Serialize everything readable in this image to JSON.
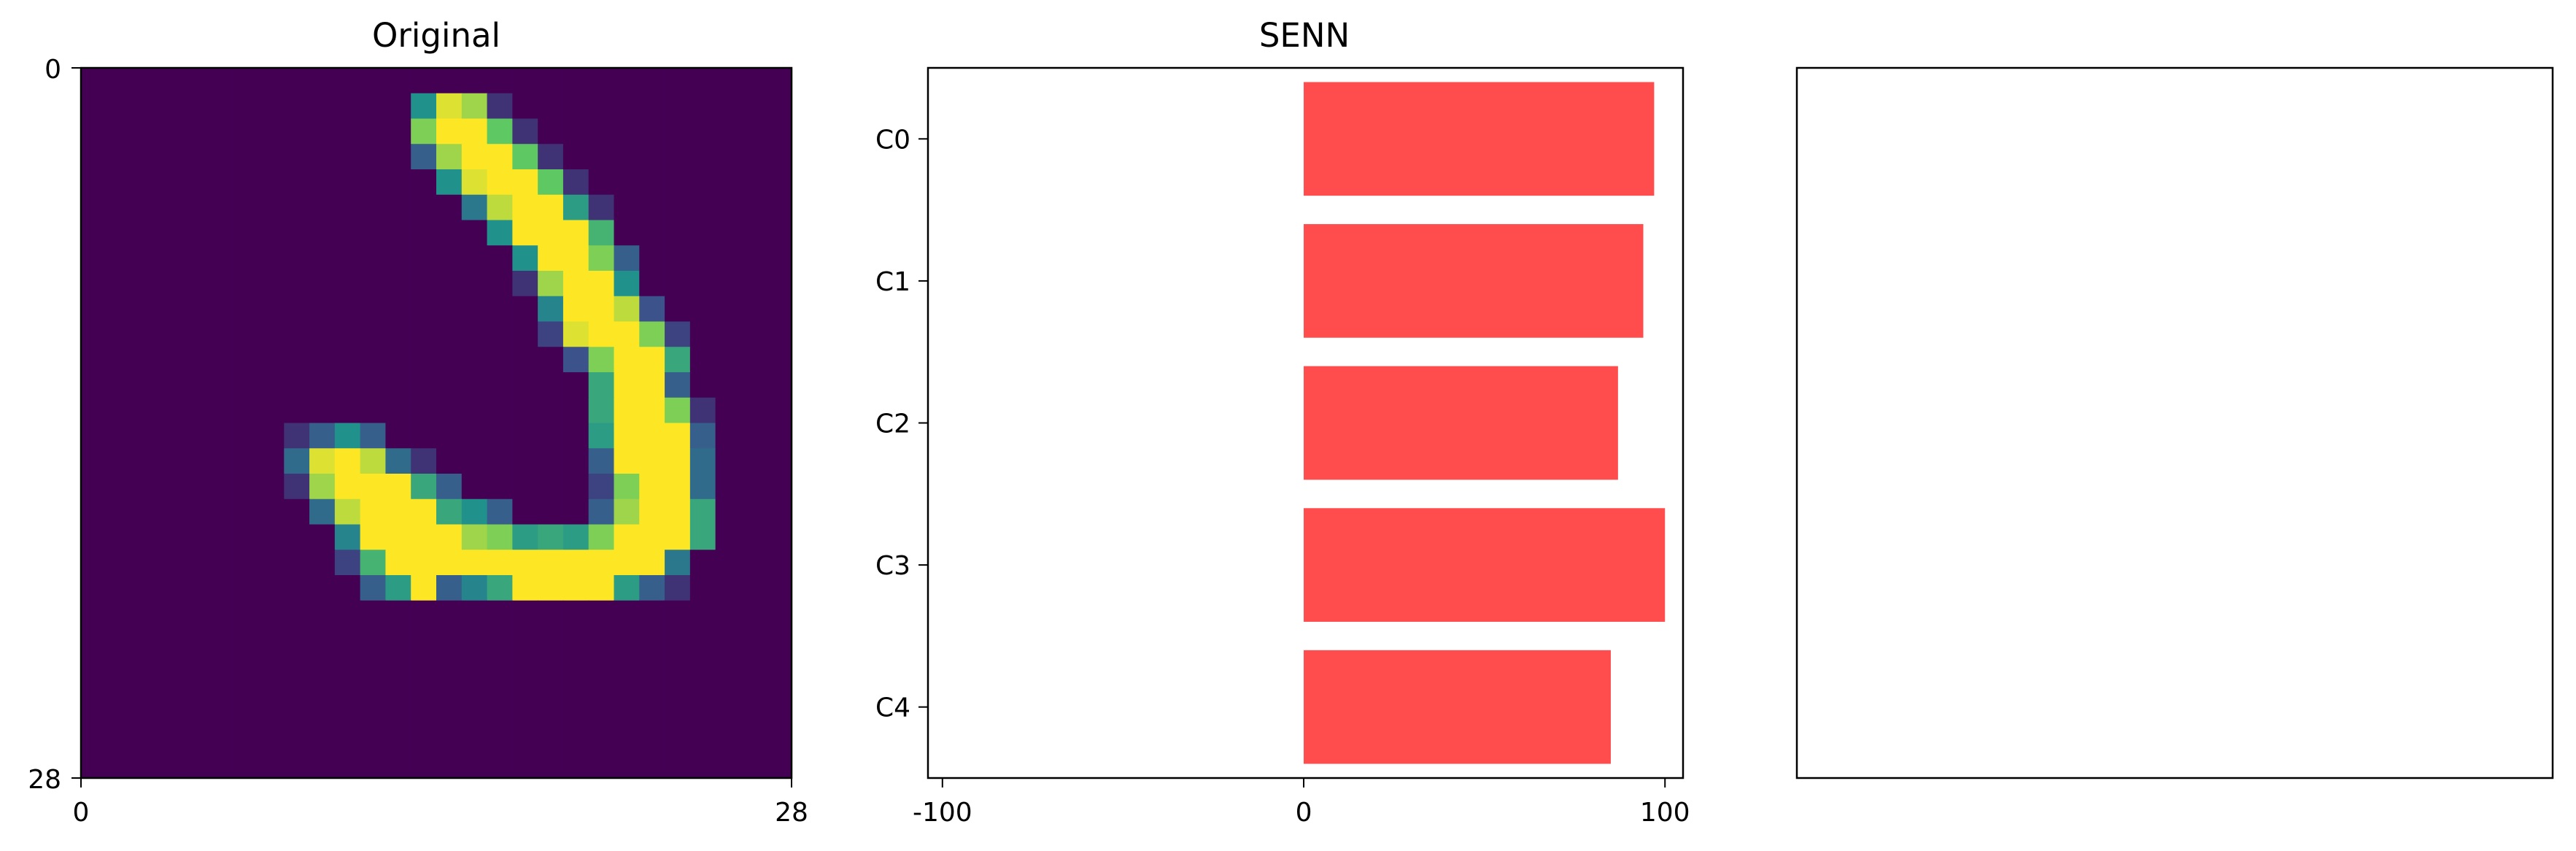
{
  "chart_data": [
    {
      "type": "heatmap",
      "title": "Original",
      "xlim": [
        0,
        28
      ],
      "ylim": [
        28,
        0
      ],
      "x_ticks": [
        "0",
        "28"
      ],
      "y_ticks": [
        "0",
        "28"
      ],
      "colormap": "viridis",
      "grid": [
        [
          0,
          0,
          0,
          0,
          0,
          0,
          0,
          0,
          0,
          0,
          0,
          0,
          0,
          0,
          0,
          0,
          0,
          0,
          0,
          0,
          0,
          0,
          0,
          0,
          0,
          0,
          0,
          0
        ],
        [
          0,
          0,
          0,
          0,
          0,
          0,
          0,
          0,
          0,
          0,
          0,
          0,
          0,
          0.5,
          0.95,
          0.85,
          0.15,
          0,
          0,
          0,
          0,
          0,
          0,
          0,
          0,
          0,
          0,
          0
        ],
        [
          0,
          0,
          0,
          0,
          0,
          0,
          0,
          0,
          0,
          0,
          0,
          0,
          0,
          0.8,
          1,
          1,
          0.75,
          0.15,
          0,
          0,
          0,
          0,
          0,
          0,
          0,
          0,
          0,
          0
        ],
        [
          0,
          0,
          0,
          0,
          0,
          0,
          0,
          0,
          0,
          0,
          0,
          0,
          0,
          0.3,
          0.85,
          1,
          1,
          0.75,
          0.15,
          0,
          0,
          0,
          0,
          0,
          0,
          0,
          0,
          0
        ],
        [
          0,
          0,
          0,
          0,
          0,
          0,
          0,
          0,
          0,
          0,
          0,
          0,
          0,
          0,
          0.5,
          0.95,
          1,
          1,
          0.75,
          0.15,
          0,
          0,
          0,
          0,
          0,
          0,
          0,
          0
        ],
        [
          0,
          0,
          0,
          0,
          0,
          0,
          0,
          0,
          0,
          0,
          0,
          0,
          0,
          0,
          0,
          0.4,
          0.9,
          1,
          1,
          0.55,
          0.15,
          0,
          0,
          0,
          0,
          0,
          0,
          0
        ],
        [
          0,
          0,
          0,
          0,
          0,
          0,
          0,
          0,
          0,
          0,
          0,
          0,
          0,
          0,
          0,
          0,
          0.5,
          1,
          1,
          1,
          0.65,
          0,
          0,
          0,
          0,
          0,
          0,
          0
        ],
        [
          0,
          0,
          0,
          0,
          0,
          0,
          0,
          0,
          0,
          0,
          0,
          0,
          0,
          0,
          0,
          0,
          0,
          0.5,
          1,
          1,
          0.8,
          0.3,
          0,
          0,
          0,
          0,
          0,
          0
        ],
        [
          0,
          0,
          0,
          0,
          0,
          0,
          0,
          0,
          0,
          0,
          0,
          0,
          0,
          0,
          0,
          0,
          0,
          0.15,
          0.85,
          1,
          1,
          0.5,
          0,
          0,
          0,
          0,
          0,
          0
        ],
        [
          0,
          0,
          0,
          0,
          0,
          0,
          0,
          0,
          0,
          0,
          0,
          0,
          0,
          0,
          0,
          0,
          0,
          0,
          0.45,
          1,
          1,
          0.9,
          0.25,
          0,
          0,
          0,
          0,
          0
        ],
        [
          0,
          0,
          0,
          0,
          0,
          0,
          0,
          0,
          0,
          0,
          0,
          0,
          0,
          0,
          0,
          0,
          0,
          0,
          0.2,
          0.95,
          1,
          1,
          0.8,
          0.2,
          0,
          0,
          0,
          0
        ],
        [
          0,
          0,
          0,
          0,
          0,
          0,
          0,
          0,
          0,
          0,
          0,
          0,
          0,
          0,
          0,
          0,
          0,
          0,
          0,
          0.25,
          0.8,
          1,
          1,
          0.6,
          0,
          0,
          0,
          0
        ],
        [
          0,
          0,
          0,
          0,
          0,
          0,
          0,
          0,
          0,
          0,
          0,
          0,
          0,
          0,
          0,
          0,
          0,
          0,
          0,
          0,
          0.6,
          1,
          1,
          0.3,
          0,
          0,
          0,
          0
        ],
        [
          0,
          0,
          0,
          0,
          0,
          0,
          0,
          0,
          0,
          0,
          0,
          0,
          0,
          0,
          0,
          0,
          0,
          0,
          0,
          0,
          0.6,
          1,
          1,
          0.8,
          0.15,
          0,
          0,
          0
        ],
        [
          0,
          0,
          0,
          0,
          0,
          0,
          0,
          0,
          0.15,
          0.3,
          0.5,
          0.3,
          0,
          0,
          0,
          0,
          0,
          0,
          0,
          0,
          0.55,
          1,
          1,
          1,
          0.3,
          0,
          0,
          0
        ],
        [
          0,
          0,
          0,
          0,
          0,
          0,
          0,
          0,
          0.35,
          0.95,
          1,
          0.9,
          0.35,
          0.15,
          0,
          0,
          0,
          0,
          0,
          0,
          0.3,
          1,
          1,
          1,
          0.35,
          0,
          0,
          0
        ],
        [
          0,
          0,
          0,
          0,
          0,
          0,
          0,
          0,
          0.15,
          0.85,
          1,
          1,
          1,
          0.6,
          0.3,
          0,
          0,
          0,
          0,
          0,
          0.2,
          0.8,
          1,
          1,
          0.35,
          0,
          0,
          0
        ],
        [
          0,
          0,
          0,
          0,
          0,
          0,
          0,
          0,
          0,
          0.35,
          0.9,
          1,
          1,
          1,
          0.6,
          0.5,
          0.3,
          0,
          0,
          0,
          0.3,
          0.85,
          1,
          1,
          0.6,
          0,
          0,
          0
        ],
        [
          0,
          0,
          0,
          0,
          0,
          0,
          0,
          0,
          0,
          0,
          0.45,
          1,
          1,
          1,
          1,
          0.85,
          0.8,
          0.55,
          0.6,
          0.55,
          0.8,
          1,
          1,
          1,
          0.6,
          0,
          0,
          0
        ],
        [
          0,
          0,
          0,
          0,
          0,
          0,
          0,
          0,
          0,
          0,
          0.2,
          0.65,
          1,
          1,
          1,
          1,
          1,
          1,
          1,
          1,
          1,
          1,
          1,
          0.4,
          0,
          0,
          0,
          0
        ],
        [
          0,
          0,
          0,
          0,
          0,
          0,
          0,
          0,
          0,
          0,
          0,
          0.3,
          0.55,
          1,
          0.3,
          0.45,
          0.6,
          1,
          1,
          1,
          1,
          0.55,
          0.3,
          0.15,
          0,
          0,
          0,
          0
        ],
        [
          0,
          0,
          0,
          0,
          0,
          0,
          0,
          0,
          0,
          0,
          0,
          0,
          0,
          0,
          0,
          0,
          0,
          0,
          0,
          0,
          0,
          0,
          0,
          0,
          0,
          0,
          0,
          0
        ],
        [
          0,
          0,
          0,
          0,
          0,
          0,
          0,
          0,
          0,
          0,
          0,
          0,
          0,
          0,
          0,
          0,
          0,
          0,
          0,
          0,
          0,
          0,
          0,
          0,
          0,
          0,
          0,
          0
        ],
        [
          0,
          0,
          0,
          0,
          0,
          0,
          0,
          0,
          0,
          0,
          0,
          0,
          0,
          0,
          0,
          0,
          0,
          0,
          0,
          0,
          0,
          0,
          0,
          0,
          0,
          0,
          0,
          0
        ],
        [
          0,
          0,
          0,
          0,
          0,
          0,
          0,
          0,
          0,
          0,
          0,
          0,
          0,
          0,
          0,
          0,
          0,
          0,
          0,
          0,
          0,
          0,
          0,
          0,
          0,
          0,
          0,
          0
        ],
        [
          0,
          0,
          0,
          0,
          0,
          0,
          0,
          0,
          0,
          0,
          0,
          0,
          0,
          0,
          0,
          0,
          0,
          0,
          0,
          0,
          0,
          0,
          0,
          0,
          0,
          0,
          0,
          0
        ],
        [
          0,
          0,
          0,
          0,
          0,
          0,
          0,
          0,
          0,
          0,
          0,
          0,
          0,
          0,
          0,
          0,
          0,
          0,
          0,
          0,
          0,
          0,
          0,
          0,
          0,
          0,
          0,
          0
        ],
        [
          0,
          0,
          0,
          0,
          0,
          0,
          0,
          0,
          0,
          0,
          0,
          0,
          0,
          0,
          0,
          0,
          0,
          0,
          0,
          0,
          0,
          0,
          0,
          0,
          0,
          0,
          0,
          0
        ]
      ]
    },
    {
      "type": "bar",
      "orientation": "horizontal",
      "title": "SENN",
      "categories": [
        "C0",
        "C1",
        "C2",
        "C3",
        "C4"
      ],
      "values": [
        97,
        94,
        87,
        100,
        85
      ],
      "color": "#ff4d4d",
      "xlim": [
        -104,
        105
      ],
      "x_ticks": [
        -100,
        0,
        100
      ],
      "category_order": "top-to-bottom",
      "grid": false
    },
    {
      "type": "bar",
      "title": "",
      "empty": true
    }
  ]
}
